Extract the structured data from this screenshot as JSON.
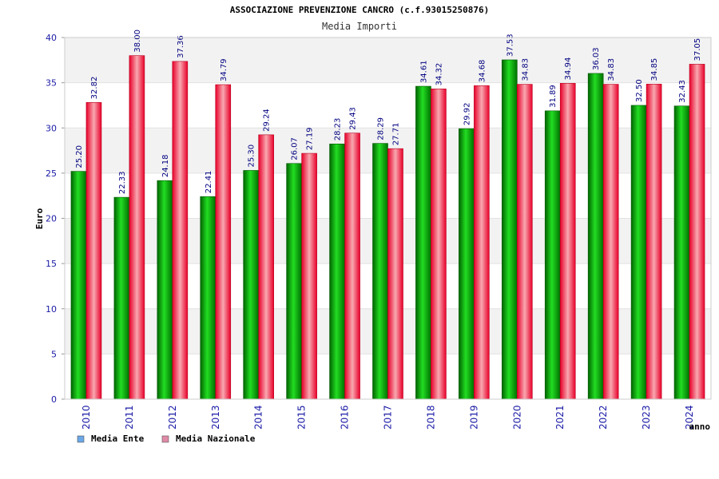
{
  "chart_data": {
    "type": "bar",
    "title": "ASSOCIAZIONE PREVENZIONE CANCRO (c.f.93015250876)",
    "subtitle": "Media Importi",
    "xlabel": "anno",
    "ylabel": "Euro",
    "ylim": [
      0,
      40
    ],
    "yticks": [
      0,
      5,
      10,
      15,
      20,
      25,
      30,
      35,
      40
    ],
    "grid": true,
    "legend_position": "bottom-left",
    "categories": [
      "2010",
      "2011",
      "2012",
      "2013",
      "2014",
      "2015",
      "2016",
      "2017",
      "2018",
      "2019",
      "2020",
      "2021",
      "2022",
      "2023",
      "2024"
    ],
    "series": [
      {
        "name": "Media Ente",
        "color": "#00a000",
        "legend_color": "#6aa8e8",
        "values": [
          25.2,
          22.33,
          24.18,
          22.41,
          25.3,
          26.07,
          28.23,
          28.29,
          34.61,
          29.92,
          37.53,
          31.89,
          36.03,
          32.5,
          32.43
        ],
        "labels": [
          "25.20",
          "22.33",
          "24.18",
          "22.41",
          "25.30",
          "26.07",
          "28.23",
          "28.29",
          "34.61",
          "29.92",
          "37.53",
          "31.89",
          "36.03",
          "32.50",
          "32.43"
        ]
      },
      {
        "name": "Media Nazionale",
        "color": "#e8102a",
        "legend_color": "#e08aa8",
        "values": [
          32.82,
          38.0,
          37.36,
          34.79,
          29.24,
          27.19,
          29.43,
          27.71,
          34.32,
          34.68,
          34.83,
          34.94,
          34.83,
          34.85,
          37.05
        ],
        "labels": [
          "32.82",
          "38.00",
          "37.36",
          "34.79",
          "29.24",
          "27.19",
          "29.43",
          "27.71",
          "34.32",
          "34.68",
          "34.83",
          "34.94",
          "34.83",
          "34.85",
          "37.05"
        ]
      }
    ]
  }
}
